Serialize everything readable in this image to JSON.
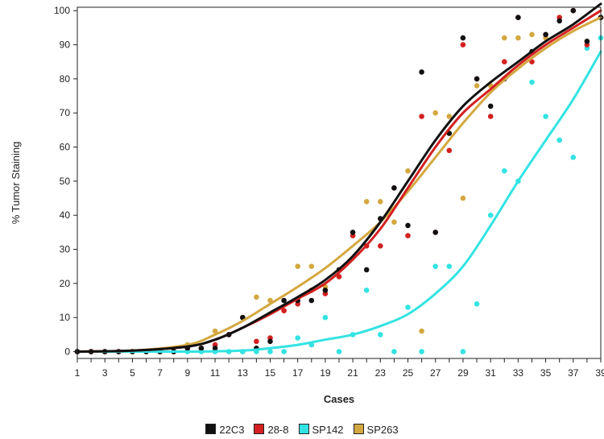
{
  "chart_data": {
    "type": "scatter",
    "title": "",
    "xlabel": "Cases",
    "ylabel": "% Tumor Staining",
    "xlim": [
      1,
      39
    ],
    "ylim": [
      -2,
      101
    ],
    "x_ticks": [
      1,
      2,
      3,
      4,
      5,
      6,
      7,
      8,
      9,
      10,
      11,
      12,
      13,
      14,
      15,
      16,
      17,
      18,
      19,
      20,
      21,
      22,
      23,
      24,
      25,
      26,
      27,
      28,
      29,
      30,
      31,
      32,
      33,
      34,
      35,
      36,
      37,
      38,
      39
    ],
    "x_tick_labels": [
      "1",
      "3",
      "5",
      "7",
      "9",
      "11",
      "13",
      "15",
      "17",
      "19",
      "21",
      "23",
      "25",
      "27",
      "29",
      "31",
      "33",
      "35",
      "37",
      "39"
    ],
    "x_tick_label_values": [
      1,
      3,
      5,
      7,
      9,
      11,
      13,
      15,
      17,
      19,
      21,
      23,
      25,
      27,
      29,
      31,
      33,
      35,
      37,
      39
    ],
    "y_ticks": [
      0,
      10,
      20,
      30,
      40,
      50,
      60,
      70,
      80,
      90,
      100
    ],
    "y_tick_labels": [
      "0",
      "10",
      "20",
      "30",
      "40",
      "50",
      "60",
      "70",
      "80",
      "90",
      "100"
    ],
    "grid": false,
    "legend_position": "bottom",
    "series": [
      {
        "name": "22C3",
        "color": "#111111",
        "points": [
          [
            1,
            0
          ],
          [
            2,
            0
          ],
          [
            3,
            0
          ],
          [
            4,
            0
          ],
          [
            5,
            0
          ],
          [
            6,
            0
          ],
          [
            7,
            0
          ],
          [
            8,
            0
          ],
          [
            9,
            1
          ],
          [
            10,
            1
          ],
          [
            11,
            1
          ],
          [
            12,
            5
          ],
          [
            13,
            10
          ],
          [
            14,
            1
          ],
          [
            15,
            3
          ],
          [
            16,
            15
          ],
          [
            17,
            15
          ],
          [
            18,
            15
          ],
          [
            19,
            18
          ],
          [
            20,
            24
          ],
          [
            21,
            35
          ],
          [
            22,
            24
          ],
          [
            23,
            39
          ],
          [
            24,
            48
          ],
          [
            25,
            37
          ],
          [
            26,
            82
          ],
          [
            27,
            35
          ],
          [
            28,
            64
          ],
          [
            29,
            92
          ],
          [
            30,
            80
          ],
          [
            31,
            72
          ],
          [
            32,
            80
          ],
          [
            33,
            98
          ],
          [
            34,
            88
          ],
          [
            35,
            93
          ],
          [
            36,
            97
          ],
          [
            37,
            100
          ],
          [
            38,
            91
          ],
          [
            39,
            98
          ]
        ],
        "curve": [
          [
            1,
            0
          ],
          [
            5,
            0.3
          ],
          [
            9,
            1.5
          ],
          [
            11,
            3.5
          ],
          [
            13,
            7
          ],
          [
            15,
            11.5
          ],
          [
            17,
            16
          ],
          [
            19,
            21
          ],
          [
            21,
            28
          ],
          [
            23,
            38
          ],
          [
            25,
            50
          ],
          [
            27,
            62
          ],
          [
            29,
            72
          ],
          [
            31,
            79
          ],
          [
            33,
            85
          ],
          [
            35,
            91
          ],
          [
            37,
            96
          ],
          [
            39,
            102
          ]
        ]
      },
      {
        "name": "28-8",
        "color": "#d42020",
        "points": [
          [
            1,
            0
          ],
          [
            2,
            0
          ],
          [
            3,
            0
          ],
          [
            4,
            0
          ],
          [
            5,
            0
          ],
          [
            6,
            0
          ],
          [
            7,
            0
          ],
          [
            8,
            0
          ],
          [
            9,
            1
          ],
          [
            10,
            1
          ],
          [
            11,
            2
          ],
          [
            12,
            5
          ],
          [
            13,
            10
          ],
          [
            14,
            3
          ],
          [
            15,
            4
          ],
          [
            16,
            12
          ],
          [
            17,
            14
          ],
          [
            18,
            18
          ],
          [
            19,
            17
          ],
          [
            20,
            22
          ],
          [
            21,
            34
          ],
          [
            22,
            31
          ],
          [
            23,
            31
          ],
          [
            24,
            48
          ],
          [
            25,
            34
          ],
          [
            26,
            69
          ],
          [
            27,
            35
          ],
          [
            28,
            59
          ],
          [
            29,
            90
          ],
          [
            30,
            80
          ],
          [
            31,
            69
          ],
          [
            32,
            85
          ],
          [
            33,
            98
          ],
          [
            34,
            85
          ],
          [
            35,
            93
          ],
          [
            36,
            98
          ],
          [
            37,
            100
          ],
          [
            38,
            90
          ],
          [
            39,
            98
          ]
        ],
        "curve": [
          [
            1,
            0
          ],
          [
            5,
            0.3
          ],
          [
            9,
            1.5
          ],
          [
            11,
            3.5
          ],
          [
            13,
            7
          ],
          [
            15,
            11
          ],
          [
            17,
            15.5
          ],
          [
            19,
            20
          ],
          [
            21,
            27
          ],
          [
            23,
            36
          ],
          [
            25,
            48
          ],
          [
            27,
            60
          ],
          [
            29,
            70
          ],
          [
            31,
            77
          ],
          [
            33,
            84
          ],
          [
            35,
            90
          ],
          [
            37,
            95
          ],
          [
            39,
            100
          ]
        ]
      },
      {
        "name": "SP142",
        "color": "#33e3e3",
        "points": [
          [
            1,
            0
          ],
          [
            2,
            0
          ],
          [
            3,
            0
          ],
          [
            4,
            0
          ],
          [
            5,
            0
          ],
          [
            6,
            0
          ],
          [
            7,
            0
          ],
          [
            8,
            0
          ],
          [
            9,
            0
          ],
          [
            10,
            0
          ],
          [
            11,
            0
          ],
          [
            12,
            0
          ],
          [
            13,
            0
          ],
          [
            14,
            0
          ],
          [
            15,
            0
          ],
          [
            16,
            0
          ],
          [
            17,
            4
          ],
          [
            18,
            2
          ],
          [
            19,
            10
          ],
          [
            20,
            0
          ],
          [
            21,
            5
          ],
          [
            22,
            18
          ],
          [
            23,
            5
          ],
          [
            24,
            0
          ],
          [
            25,
            13
          ],
          [
            26,
            0
          ],
          [
            27,
            25
          ],
          [
            28,
            25
          ],
          [
            29,
            0
          ],
          [
            30,
            14
          ],
          [
            31,
            40
          ],
          [
            32,
            53
          ],
          [
            33,
            50
          ],
          [
            34,
            79
          ],
          [
            35,
            69
          ],
          [
            36,
            62
          ],
          [
            37,
            57
          ],
          [
            38,
            89
          ],
          [
            39,
            92
          ]
        ],
        "curve": [
          [
            1,
            0
          ],
          [
            9,
            0
          ],
          [
            13,
            0.3
          ],
          [
            15,
            1
          ],
          [
            17,
            2
          ],
          [
            19,
            3.5
          ],
          [
            21,
            5
          ],
          [
            23,
            7.5
          ],
          [
            25,
            11
          ],
          [
            27,
            17
          ],
          [
            29,
            25
          ],
          [
            31,
            37
          ],
          [
            33,
            50
          ],
          [
            35,
            62
          ],
          [
            37,
            74
          ],
          [
            39,
            88
          ]
        ]
      },
      {
        "name": "SP263",
        "color": "#d4a840",
        "points": [
          [
            1,
            0
          ],
          [
            2,
            0
          ],
          [
            3,
            0
          ],
          [
            4,
            0
          ],
          [
            5,
            0
          ],
          [
            6,
            0
          ],
          [
            7,
            0
          ],
          [
            8,
            0
          ],
          [
            9,
            2
          ],
          [
            10,
            1
          ],
          [
            11,
            6
          ],
          [
            12,
            5
          ],
          [
            13,
            0
          ],
          [
            14,
            16
          ],
          [
            15,
            15
          ],
          [
            16,
            12
          ],
          [
            17,
            25
          ],
          [
            18,
            25
          ],
          [
            19,
            19
          ],
          [
            20,
            22
          ],
          [
            21,
            34
          ],
          [
            22,
            44
          ],
          [
            23,
            44
          ],
          [
            24,
            38
          ],
          [
            25,
            53
          ],
          [
            26,
            6
          ],
          [
            27,
            70
          ],
          [
            28,
            69
          ],
          [
            29,
            45
          ],
          [
            30,
            78
          ],
          [
            31,
            78
          ],
          [
            32,
            92
          ],
          [
            33,
            92
          ],
          [
            34,
            93
          ],
          [
            35,
            92
          ],
          [
            36,
            98
          ],
          [
            37,
            100
          ],
          [
            38,
            91
          ],
          [
            39,
            98
          ]
        ],
        "curve": [
          [
            1,
            0
          ],
          [
            5,
            0.3
          ],
          [
            9,
            2
          ],
          [
            11,
            5
          ],
          [
            13,
            9
          ],
          [
            15,
            14
          ],
          [
            17,
            19
          ],
          [
            19,
            24.5
          ],
          [
            21,
            31
          ],
          [
            23,
            38
          ],
          [
            25,
            47
          ],
          [
            27,
            57
          ],
          [
            29,
            67
          ],
          [
            31,
            76
          ],
          [
            33,
            83
          ],
          [
            35,
            89
          ],
          [
            37,
            94
          ],
          [
            39,
            98
          ]
        ]
      }
    ]
  }
}
